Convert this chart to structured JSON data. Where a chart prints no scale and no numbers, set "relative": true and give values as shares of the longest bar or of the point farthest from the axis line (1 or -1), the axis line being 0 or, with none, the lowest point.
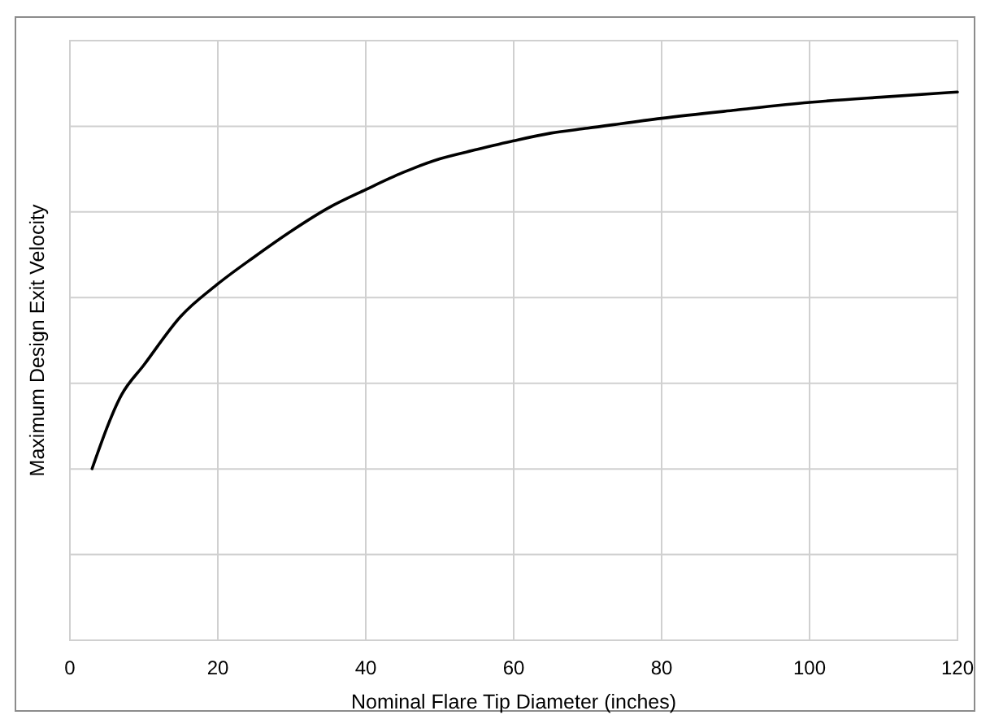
{
  "chart_data": {
    "type": "line",
    "xlabel": "Nominal Flare Tip Diameter (inches)",
    "ylabel": "Maximum Design Exit Velocity",
    "relative": true,
    "xlim": [
      0,
      120
    ],
    "xticks": [
      0,
      20,
      40,
      60,
      80,
      100,
      120
    ],
    "grid": true,
    "marker": "none",
    "line_style": "solid",
    "series": [
      {
        "color": "#000000",
        "x": [
          3,
          7,
          10,
          15,
          20,
          25,
          30,
          35,
          40,
          45,
          50,
          55,
          60,
          65,
          70,
          80,
          90,
          100,
          110,
          120
        ],
        "values": [
          0.313,
          0.448,
          0.502,
          0.591,
          0.65,
          0.7,
          0.747,
          0.789,
          0.822,
          0.853,
          0.878,
          0.895,
          0.911,
          0.925,
          0.934,
          0.952,
          0.967,
          0.981,
          0.991,
          1
        ]
      }
    ]
  }
}
